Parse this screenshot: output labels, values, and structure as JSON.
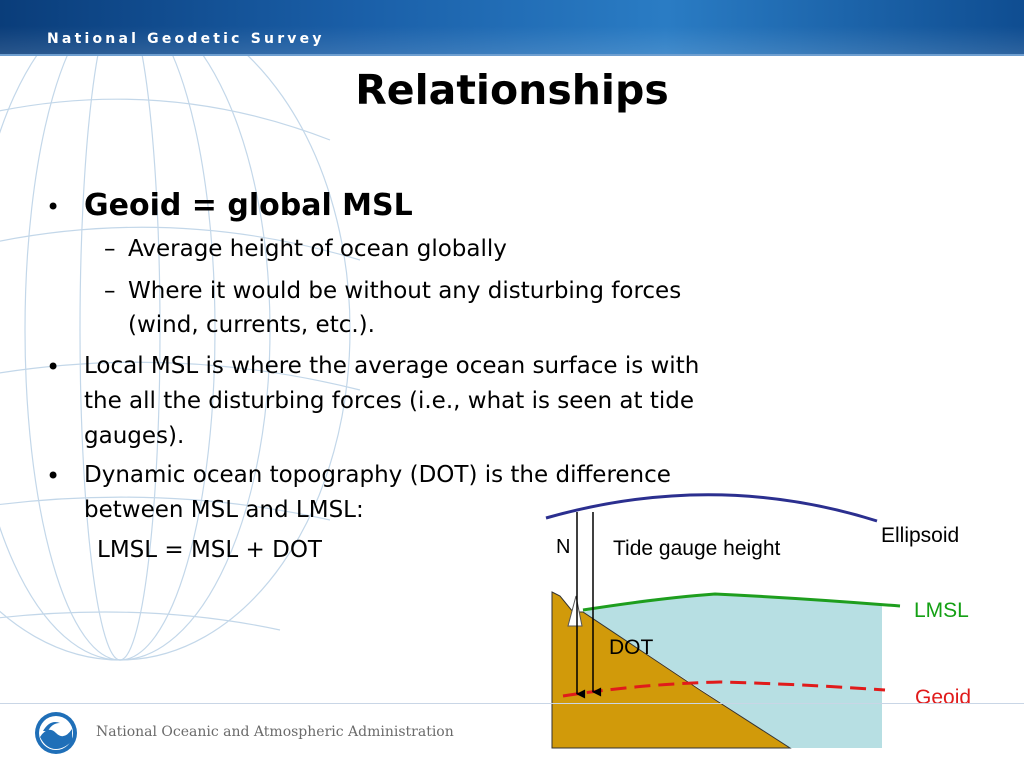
{
  "header": {
    "org_name": "National Geodetic Survey"
  },
  "slide": {
    "title": "Relationships"
  },
  "bullets": {
    "b1": {
      "marker": "•",
      "text": "Geoid = global MSL"
    },
    "b1_sub1": {
      "marker": "–",
      "text": "Average height of ocean globally"
    },
    "b1_sub2": {
      "marker": "–",
      "line1": "Where it would be without any disturbing forces",
      "line2": "(wind, currents, etc.)."
    },
    "b2": {
      "marker": "•",
      "line1": "Local MSL is where the average ocean surface is with",
      "line2": "the all the disturbing forces (i.e., what is seen at tide",
      "line3": "gauges)."
    },
    "b3": {
      "marker": "•",
      "line1": "Dynamic ocean topography (DOT) is the difference",
      "line2": "between MSL and LMSL:"
    },
    "equation": "LMSL = MSL + DOT"
  },
  "diagram": {
    "labels": {
      "n": "N",
      "tide_gauge": "Tide gauge height",
      "ellipsoid": "Ellipsoid",
      "lmsl": "LMSL",
      "dot": "DOT",
      "geoid": "Geoid"
    },
    "colors": {
      "ellipsoid": "#2b2f8f",
      "lmsl": "#1e9e1e",
      "geoid": "#e01b1b",
      "water": "#b7dfe3",
      "land": "#d19a0a",
      "label_ellipsoid": "#000000",
      "label_lmsl": "#14a014",
      "label_geoid": "#e01b1b"
    }
  },
  "footer": {
    "agency": "National Oceanic and Atmospheric Administration",
    "logo_icon": "noaa-logo-icon"
  }
}
